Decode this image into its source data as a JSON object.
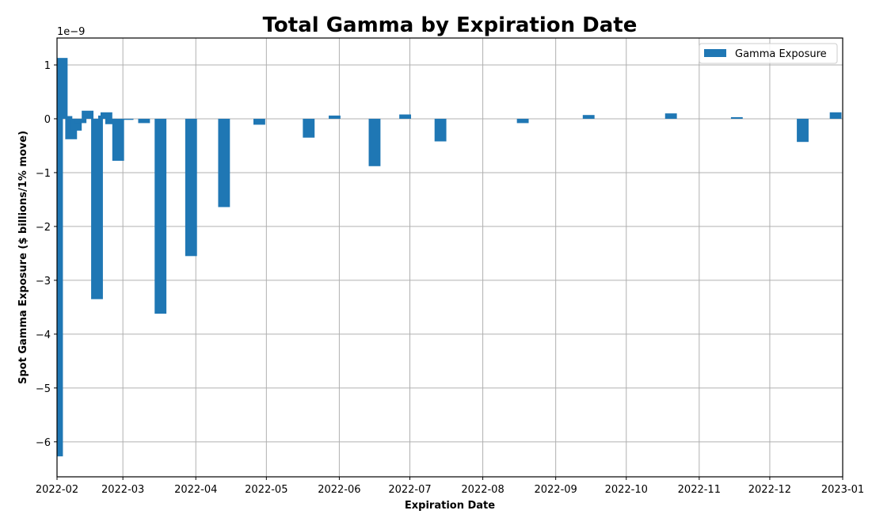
{
  "chart_data": {
    "type": "bar",
    "title": "Total Gamma by Expiration Date",
    "xlabel": "Expiration Date",
    "ylabel": "Spot Gamma Exposure ($ billions/1% move)",
    "y_offset_text": "1e−9",
    "y_scale": 1e-09,
    "ylim": [
      -6.65,
      1.5
    ],
    "xlim": [
      "2022-02-01",
      "2023-01-01"
    ],
    "grid": true,
    "legend": {
      "position": "upper right",
      "entries": [
        "Gamma Exposure"
      ]
    },
    "color": "#1f77b4",
    "bar_width_days": 5,
    "x_ticks": [
      "2022-02",
      "2022-03",
      "2022-04",
      "2022-05",
      "2022-06",
      "2022-07",
      "2022-08",
      "2022-09",
      "2022-10",
      "2022-11",
      "2022-12",
      "2023-01"
    ],
    "y_ticks": [
      1,
      0,
      -1,
      -2,
      -3,
      -4,
      -5,
      -6
    ],
    "y_tick_labels": [
      "1",
      "0",
      "−1",
      "−2",
      "−3",
      "−4",
      "−5",
      "−6"
    ],
    "series": [
      {
        "name": "Gamma Exposure",
        "points": [
          {
            "x": "2022-02-01",
            "y": -6.27
          },
          {
            "x": "2022-02-03",
            "y": 1.13
          },
          {
            "x": "2022-02-05",
            "y": 0.05
          },
          {
            "x": "2022-02-07",
            "y": -0.38
          },
          {
            "x": "2022-02-09",
            "y": -0.22
          },
          {
            "x": "2022-02-11",
            "y": -0.08
          },
          {
            "x": "2022-02-14",
            "y": 0.15
          },
          {
            "x": "2022-02-18",
            "y": -3.35
          },
          {
            "x": "2022-02-21",
            "y": 0.06
          },
          {
            "x": "2022-02-22",
            "y": 0.12
          },
          {
            "x": "2022-02-24",
            "y": -0.1
          },
          {
            "x": "2022-02-27",
            "y": -0.78
          },
          {
            "x": "2022-03-03",
            "y": -0.02
          },
          {
            "x": "2022-03-10",
            "y": -0.08
          },
          {
            "x": "2022-03-17",
            "y": -3.62
          },
          {
            "x": "2022-03-30",
            "y": -2.55
          },
          {
            "x": "2022-04-13",
            "y": -1.64
          },
          {
            "x": "2022-04-28",
            "y": -0.11
          },
          {
            "x": "2022-05-19",
            "y": -0.35
          },
          {
            "x": "2022-05-30",
            "y": 0.06
          },
          {
            "x": "2022-06-16",
            "y": -0.88
          },
          {
            "x": "2022-06-29",
            "y": 0.08
          },
          {
            "x": "2022-07-14",
            "y": -0.42
          },
          {
            "x": "2022-08-18",
            "y": -0.08
          },
          {
            "x": "2022-09-15",
            "y": 0.07
          },
          {
            "x": "2022-10-20",
            "y": 0.1
          },
          {
            "x": "2022-11-17",
            "y": 0.03
          },
          {
            "x": "2022-12-15",
            "y": -0.43
          },
          {
            "x": "2022-12-29",
            "y": 0.12
          }
        ]
      }
    ]
  }
}
